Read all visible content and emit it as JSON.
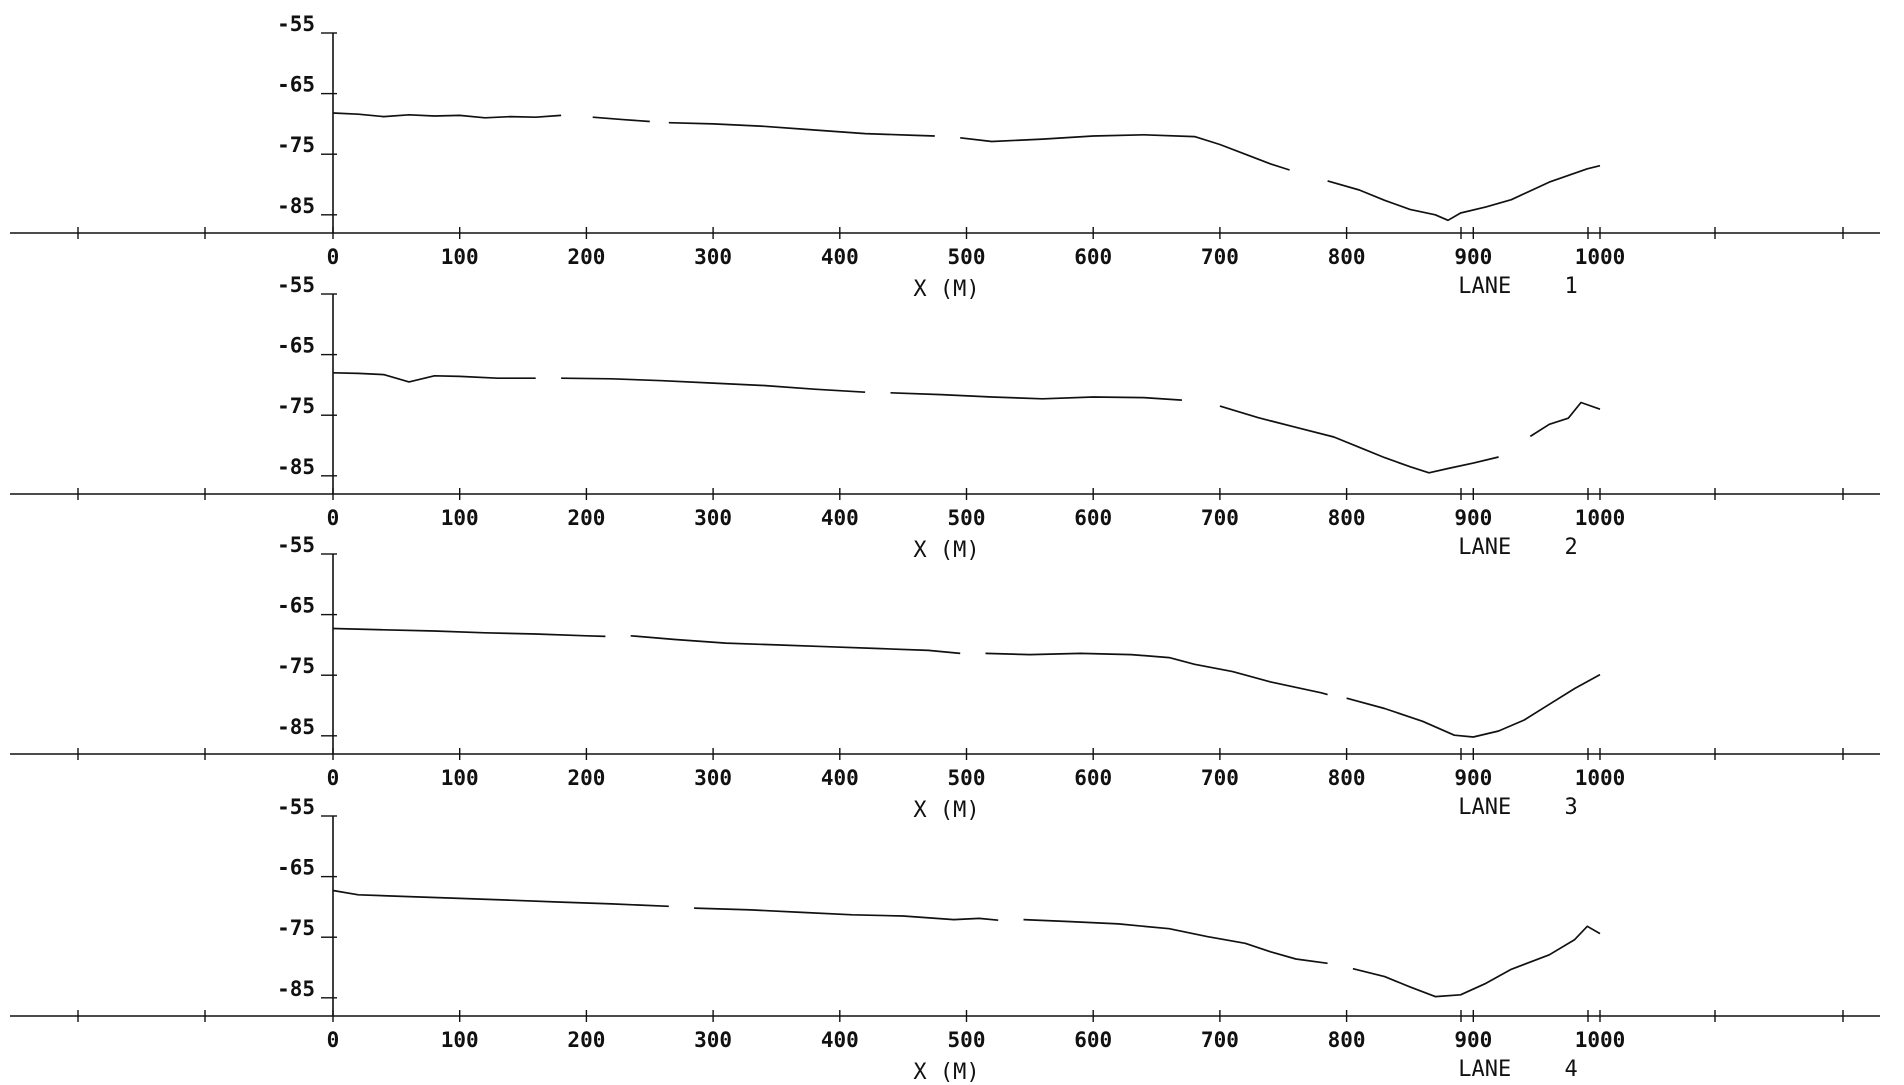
{
  "colors": {
    "ink": "#111111",
    "background": "#ffffff"
  },
  "chart_data": [
    {
      "type": "line",
      "lane_label": "LANE",
      "lane_number": "1",
      "xlabel": "X (M)",
      "ylabel": "",
      "xlim": [
        0,
        1000
      ],
      "ylim": [
        -88,
        -55
      ],
      "x_ticks": [
        0,
        100,
        200,
        300,
        400,
        500,
        600,
        700,
        800,
        900,
        1000
      ],
      "x_tick_labels": [
        "0",
        "100",
        "200",
        "300",
        "400",
        "500",
        "600",
        "700",
        "800",
        "900",
        "1000"
      ],
      "y_ticks": [
        -55,
        -65,
        -75,
        -85
      ],
      "y_tick_labels": [
        "-55",
        "-65",
        "-75",
        "-85"
      ],
      "grid": false,
      "segments": [
        {
          "x": [
            0,
            20,
            40,
            60,
            80,
            100,
            120,
            140,
            160,
            180
          ],
          "y": [
            -68.2,
            -68.4,
            -68.8,
            -68.5,
            -68.7,
            -68.6,
            -69.0,
            -68.8,
            -68.9,
            -68.6
          ]
        },
        {
          "x": [
            205,
            230,
            250
          ],
          "y": [
            -68.9,
            -69.3,
            -69.6
          ]
        },
        {
          "x": [
            265,
            300,
            340,
            380,
            420,
            460,
            475
          ],
          "y": [
            -69.8,
            -70.0,
            -70.4,
            -71.0,
            -71.6,
            -71.9,
            -72.0
          ]
        },
        {
          "x": [
            495,
            520,
            560,
            600,
            640,
            680,
            700,
            720,
            740,
            755
          ],
          "y": [
            -72.3,
            -72.9,
            -72.5,
            -72.0,
            -71.8,
            -72.1,
            -73.4,
            -75.0,
            -76.6,
            -77.6
          ]
        },
        {
          "x": [
            785,
            810,
            830,
            850,
            870,
            880,
            890,
            910,
            930,
            960,
            990,
            1000
          ],
          "y": [
            -79.4,
            -80.9,
            -82.6,
            -84.1,
            -85.0,
            -85.9,
            -84.7,
            -83.7,
            -82.5,
            -79.6,
            -77.4,
            -76.9
          ]
        }
      ]
    },
    {
      "type": "line",
      "lane_label": "LANE",
      "lane_number": "2",
      "xlabel": "X (M)",
      "ylabel": "",
      "xlim": [
        0,
        1000
      ],
      "ylim": [
        -88,
        -55
      ],
      "x_ticks": [
        0,
        100,
        200,
        300,
        400,
        500,
        600,
        700,
        800,
        900,
        1000
      ],
      "x_tick_labels": [
        "0",
        "100",
        "200",
        "300",
        "400",
        "500",
        "600",
        "700",
        "800",
        "900",
        "1000"
      ],
      "y_ticks": [
        -55,
        -65,
        -75,
        -85
      ],
      "y_tick_labels": [
        "-55",
        "-65",
        "-75",
        "-85"
      ],
      "grid": false,
      "segments": [
        {
          "x": [
            0,
            20,
            40,
            60,
            80,
            100,
            130,
            160
          ],
          "y": [
            -68.0,
            -68.1,
            -68.3,
            -69.5,
            -68.5,
            -68.6,
            -68.9,
            -68.9
          ]
        },
        {
          "x": [
            180,
            220,
            260,
            300,
            340,
            380,
            420
          ],
          "y": [
            -68.9,
            -69.0,
            -69.3,
            -69.7,
            -70.1,
            -70.7,
            -71.2
          ]
        },
        {
          "x": [
            440,
            480,
            520,
            560,
            600,
            640,
            670
          ],
          "y": [
            -71.3,
            -71.6,
            -72.0,
            -72.3,
            -72.0,
            -72.1,
            -72.5
          ]
        },
        {
          "x": [
            700,
            730,
            760,
            790,
            810,
            830,
            850,
            865,
            880,
            900,
            920
          ],
          "y": [
            -73.5,
            -75.4,
            -77.0,
            -78.6,
            -80.3,
            -82.0,
            -83.5,
            -84.5,
            -83.8,
            -82.9,
            -81.9
          ]
        },
        {
          "x": [
            945,
            960,
            975,
            985,
            1000
          ],
          "y": [
            -78.5,
            -76.5,
            -75.5,
            -72.9,
            -74.0
          ]
        }
      ]
    },
    {
      "type": "line",
      "lane_label": "LANE",
      "lane_number": "3",
      "xlabel": "X (M)",
      "ylabel": "",
      "xlim": [
        0,
        1000
      ],
      "ylim": [
        -88,
        -55
      ],
      "x_ticks": [
        0,
        100,
        200,
        300,
        400,
        500,
        600,
        700,
        800,
        900,
        1000
      ],
      "x_tick_labels": [
        "0",
        "100",
        "200",
        "300",
        "400",
        "500",
        "600",
        "700",
        "800",
        "900",
        "1000"
      ],
      "y_ticks": [
        -55,
        -65,
        -75,
        -85
      ],
      "y_tick_labels": [
        "-55",
        "-65",
        "-75",
        "-85"
      ],
      "grid": false,
      "segments": [
        {
          "x": [
            0,
            40,
            80,
            120,
            160,
            200,
            215
          ],
          "y": [
            -67.3,
            -67.5,
            -67.7,
            -68.0,
            -68.2,
            -68.5,
            -68.6
          ]
        },
        {
          "x": [
            235,
            270,
            310,
            350,
            390,
            430,
            470,
            495
          ],
          "y": [
            -68.5,
            -69.1,
            -69.7,
            -70.0,
            -70.3,
            -70.6,
            -70.9,
            -71.4
          ]
        },
        {
          "x": [
            515,
            550,
            590,
            630,
            660,
            680,
            710,
            740,
            780,
            785
          ],
          "y": [
            -71.4,
            -71.6,
            -71.4,
            -71.6,
            -72.1,
            -73.2,
            -74.4,
            -76.1,
            -77.9,
            -78.2
          ]
        },
        {
          "x": [
            800,
            830,
            860,
            885,
            900,
            920,
            940,
            960,
            980,
            1000
          ],
          "y": [
            -78.8,
            -80.5,
            -82.6,
            -84.9,
            -85.2,
            -84.2,
            -82.4,
            -79.8,
            -77.2,
            -74.9
          ]
        }
      ]
    },
    {
      "type": "line",
      "lane_label": "LANE",
      "lane_number": "4",
      "xlabel": "X (M)",
      "ylabel": "",
      "xlim": [
        0,
        1000
      ],
      "ylim": [
        -88,
        -55
      ],
      "x_ticks": [
        0,
        100,
        200,
        300,
        400,
        500,
        600,
        700,
        800,
        900,
        1000
      ],
      "x_tick_labels": [
        "0",
        "100",
        "200",
        "300",
        "400",
        "500",
        "600",
        "700",
        "800",
        "900",
        "1000"
      ],
      "y_ticks": [
        -55,
        -65,
        -75,
        -85
      ],
      "y_tick_labels": [
        "-55",
        "-65",
        "-75",
        "-85"
      ],
      "grid": false,
      "segments": [
        {
          "x": [
            0,
            20,
            60,
            100,
            140,
            180,
            220,
            265
          ],
          "y": [
            -67.3,
            -68.0,
            -68.3,
            -68.6,
            -68.9,
            -69.2,
            -69.5,
            -69.9
          ]
        },
        {
          "x": [
            285,
            330,
            370,
            410,
            450,
            490,
            510,
            525
          ],
          "y": [
            -70.2,
            -70.5,
            -70.9,
            -71.3,
            -71.5,
            -72.1,
            -71.9,
            -72.2
          ]
        },
        {
          "x": [
            545,
            580,
            620,
            660,
            690,
            720,
            740,
            760,
            785
          ],
          "y": [
            -72.1,
            -72.4,
            -72.8,
            -73.6,
            -74.9,
            -76.0,
            -77.4,
            -78.6,
            -79.3
          ]
        },
        {
          "x": [
            805,
            830,
            850,
            870,
            890,
            910,
            930,
            960,
            980,
            990,
            1000
          ],
          "y": [
            -80.2,
            -81.5,
            -83.2,
            -84.8,
            -84.5,
            -82.6,
            -80.3,
            -77.9,
            -75.4,
            -73.2,
            -74.4
          ]
        }
      ]
    }
  ]
}
